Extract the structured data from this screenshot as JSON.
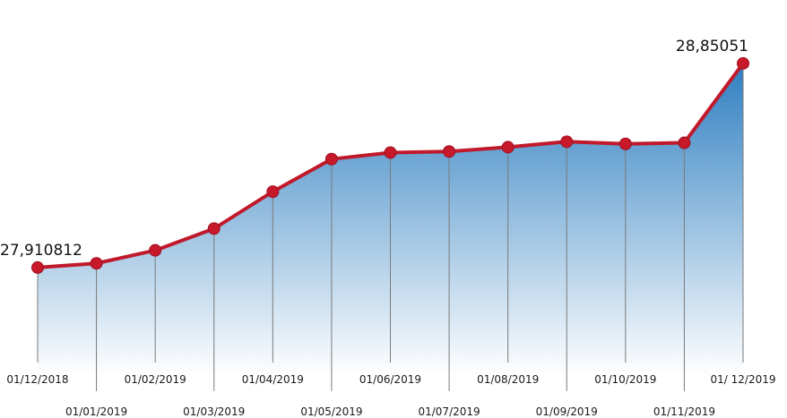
{
  "chart_data": {
    "type": "area",
    "title": "",
    "xlabel": "",
    "ylabel": "",
    "x": [
      "01/12/2018",
      "01/01/2019",
      "01/02/2019",
      "01/03/2019",
      "01/04/2019",
      "01/05/2019",
      "01/06/2019",
      "01/07/2019",
      "01/08/2019",
      "01/09/2019",
      "01/10/2019",
      "01/11/2019",
      "01/ 12/2019"
    ],
    "values": [
      27.910812,
      27.93,
      27.99,
      28.09,
      28.26,
      28.41,
      28.44,
      28.445,
      28.465,
      28.49,
      28.48,
      28.485,
      28.85051
    ],
    "data_labels": [
      {
        "index": 0,
        "text": "27,910812"
      },
      {
        "index": 12,
        "text": "28,85051"
      }
    ],
    "ylim": [
      27.42,
      29.06
    ],
    "grid": false,
    "legend": "none",
    "colors": {
      "line": "#c0192a",
      "marker": "#c8192b",
      "marker_stroke": "#9e1020",
      "fill_top": "#2f7fc1",
      "fill_bottom": "#ffffff",
      "drop_line": "#7a7a7a"
    }
  }
}
